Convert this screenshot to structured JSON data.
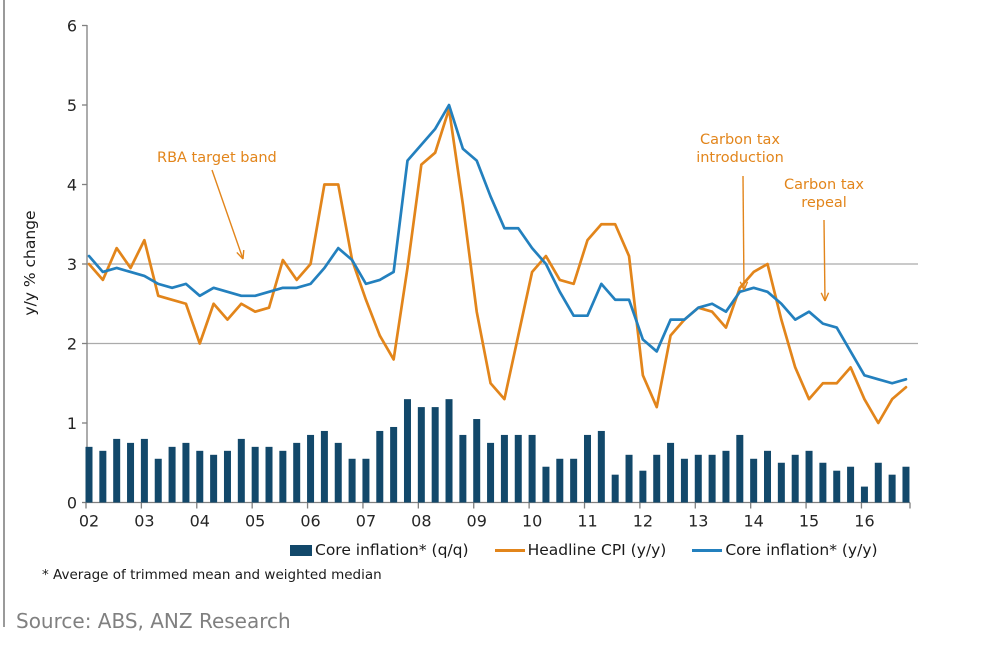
{
  "chart_data": {
    "type": "combo-bar-line",
    "title": "",
    "ylabel": "y/y % change",
    "xlabel": "",
    "ylim": [
      0,
      6
    ],
    "y_ticks": [
      0,
      1,
      2,
      3,
      4,
      5,
      6
    ],
    "y_tick_labels": [
      "0",
      "1",
      "2",
      "3",
      "4",
      "5",
      "6"
    ],
    "x_tick_labels": [
      "02",
      "03",
      "04",
      "05",
      "06",
      "07",
      "08",
      "09",
      "10",
      "11",
      "12",
      "13",
      "14",
      "15",
      "16"
    ],
    "grid_on": "horizontal lines at 2 and 3 only (RBA target band)",
    "target_band_values": [
      2,
      3
    ],
    "frequency": "quarterly",
    "x_range": "2002Q1-2016Q4",
    "legend_position": "bottom",
    "series": [
      {
        "name": "Core inflation* (q/q)",
        "type": "bar",
        "color": "#12486A",
        "values": [
          0.7,
          0.65,
          0.8,
          0.75,
          0.8,
          0.55,
          0.7,
          0.75,
          0.65,
          0.6,
          0.65,
          0.8,
          0.7,
          0.7,
          0.65,
          0.75,
          0.85,
          0.9,
          0.75,
          0.55,
          0.55,
          0.9,
          0.95,
          1.3,
          1.2,
          1.2,
          1.3,
          0.85,
          1.05,
          0.75,
          0.85,
          0.85,
          0.85,
          0.45,
          0.55,
          0.55,
          0.85,
          0.9,
          0.35,
          0.6,
          0.4,
          0.6,
          0.75,
          0.55,
          0.6,
          0.6,
          0.65,
          0.85,
          0.55,
          0.65,
          0.5,
          0.6,
          0.65,
          0.5,
          0.4,
          0.45,
          0.2,
          0.5,
          0.35,
          0.45
        ]
      },
      {
        "name": "Headline CPI (y/y)",
        "type": "line",
        "color": "#E2851B",
        "values": [
          3.0,
          2.8,
          3.2,
          2.95,
          3.3,
          2.6,
          2.55,
          2.5,
          2.0,
          2.5,
          2.3,
          2.5,
          2.4,
          2.45,
          3.05,
          2.8,
          3.0,
          4.0,
          4.0,
          3.05,
          2.55,
          2.1,
          1.8,
          2.95,
          4.25,
          4.4,
          4.95,
          3.75,
          2.4,
          1.5,
          1.3,
          2.1,
          2.9,
          3.1,
          2.8,
          2.75,
          3.3,
          3.5,
          3.5,
          3.1,
          1.6,
          1.2,
          2.1,
          2.3,
          2.45,
          2.4,
          2.2,
          2.7,
          2.9,
          3.0,
          2.3,
          1.7,
          1.3,
          1.5,
          1.5,
          1.7,
          1.3,
          1.0,
          1.3,
          1.45
        ]
      },
      {
        "name": "Core inflation* (y/y)",
        "type": "line",
        "color": "#2380BE",
        "values": [
          3.1,
          2.9,
          2.95,
          2.9,
          2.85,
          2.75,
          2.7,
          2.75,
          2.6,
          2.7,
          2.65,
          2.6,
          2.6,
          2.65,
          2.7,
          2.7,
          2.75,
          2.95,
          3.2,
          3.05,
          2.75,
          2.8,
          2.9,
          4.3,
          4.5,
          4.7,
          5.0,
          4.45,
          4.3,
          3.85,
          3.45,
          3.45,
          3.2,
          3.0,
          2.65,
          2.35,
          2.35,
          2.75,
          2.55,
          2.55,
          2.05,
          1.9,
          2.3,
          2.3,
          2.45,
          2.5,
          2.4,
          2.65,
          2.7,
          2.65,
          2.5,
          2.3,
          2.4,
          2.25,
          2.2,
          1.9,
          1.6,
          1.55,
          1.5,
          1.55
        ]
      }
    ],
    "annotations": [
      {
        "id": "rba-target-band",
        "lines": [
          "RBA target band"
        ],
        "color": "#E2851B",
        "arrow": [
          212,
          170,
          243,
          259
        ]
      },
      {
        "id": "carbon-tax-introduction",
        "lines": [
          "Carbon tax",
          "introduction"
        ],
        "color": "#E2851B",
        "arrow": [
          743,
          176,
          744,
          290
        ]
      },
      {
        "id": "carbon-tax-repeal",
        "lines": [
          "Carbon tax",
          "repeal"
        ],
        "color": "#E2851B",
        "arrow": [
          824,
          220,
          825,
          301
        ]
      }
    ]
  },
  "footnote": "* Average of trimmed mean and weighted median",
  "source": "Source: ABS, ANZ Research",
  "colors": {
    "bar_navy": "#12486A",
    "headline_orange": "#E2851B",
    "core_blue": "#2380BE",
    "gridline": "#ABABAB",
    "axis": "#808080",
    "tick_text": "#262626",
    "source_text": "#808080"
  }
}
